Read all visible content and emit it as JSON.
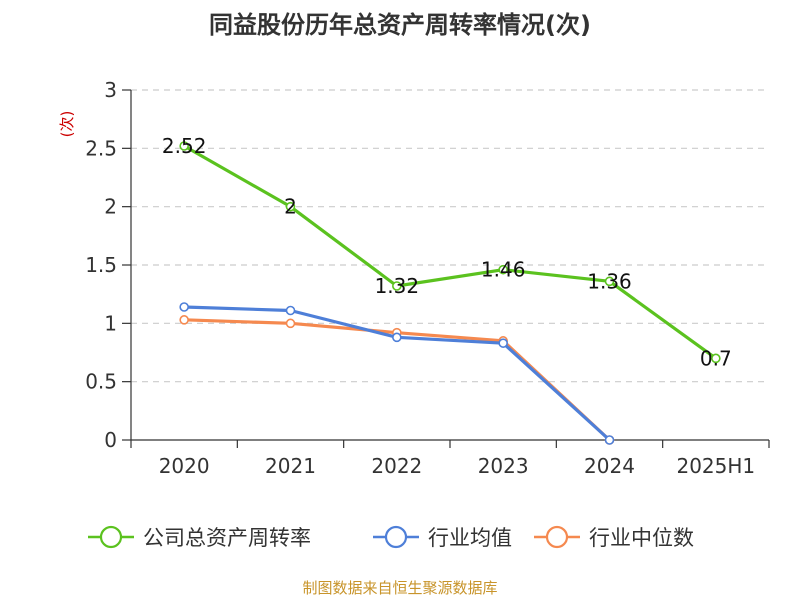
{
  "chart_data": {
    "type": "line",
    "title": "同益股份历年总资产周转率情况(次)",
    "ylabel": "(次)",
    "xlabel": "",
    "categories": [
      "2020",
      "2021",
      "2022",
      "2023",
      "2024",
      "2025H1"
    ],
    "ylim": [
      0,
      3
    ],
    "yticks": [
      "0",
      "0.5",
      "1",
      "1.5",
      "2",
      "2.5",
      "3"
    ],
    "grid": "horizontal dashed",
    "legend_position": "bottom",
    "series": [
      {
        "name": "公司总资产周转率",
        "color": "#5bc21f",
        "values": [
          2.52,
          2,
          1.32,
          1.46,
          1.36,
          0.7
        ],
        "labels": [
          "2.52",
          "2",
          "1.32",
          "1.46",
          "1.36",
          "0.7"
        ]
      },
      {
        "name": "行业均值",
        "color": "#4e7fd8",
        "values": [
          1.14,
          1.11,
          0.88,
          0.83,
          0,
          null
        ]
      },
      {
        "name": "行业中位数",
        "color": "#f5894f",
        "values": [
          1.03,
          1.0,
          0.92,
          0.85,
          0,
          null
        ]
      }
    ]
  },
  "source": "制图数据来自恒生聚源数据库"
}
